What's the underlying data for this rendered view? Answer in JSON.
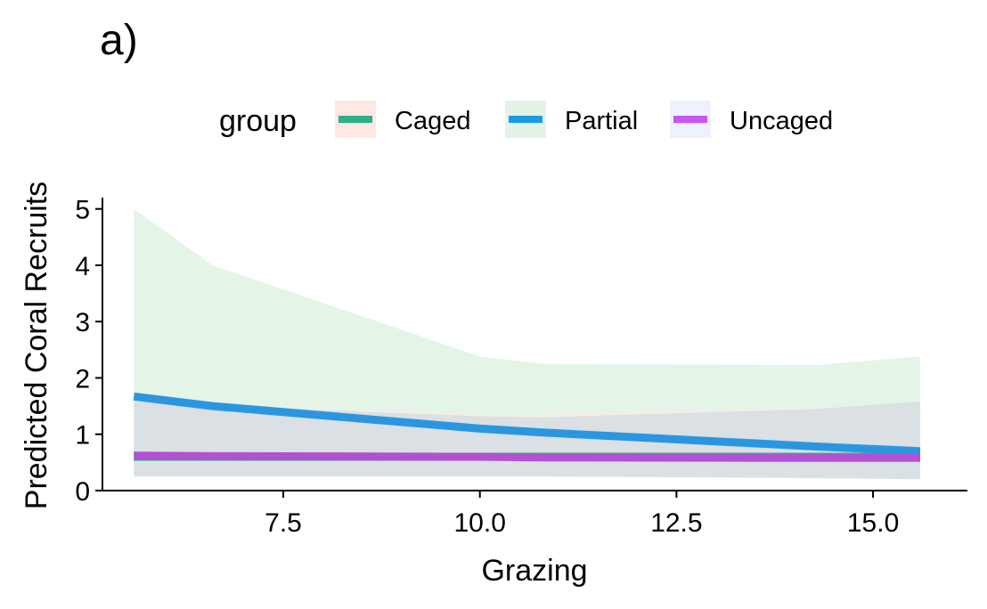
{
  "panel_label": "a)",
  "chart_data": {
    "type": "line",
    "title": "",
    "xlabel": "Grazing",
    "ylabel": "Predicted Coral Recruits",
    "xlim": [
      5.2,
      16.2
    ],
    "ylim": [
      0,
      5.2
    ],
    "xticks": [
      7.5,
      10.0,
      12.5,
      15.0
    ],
    "xtick_labels": [
      "7.5",
      "10.0",
      "12.5",
      "15.0"
    ],
    "yticks": [
      0,
      1,
      2,
      3,
      4,
      5
    ],
    "ytick_labels": [
      "0",
      "1",
      "2",
      "3",
      "4",
      "5"
    ],
    "grid": false,
    "legend": {
      "title": "group",
      "position": "top",
      "entries": [
        "Caged",
        "Partial",
        "Uncaged"
      ]
    },
    "series": [
      {
        "name": "Caged",
        "line_color": "#2db08a",
        "ribbon_color": "#fde8e4",
        "x": [
          5.6,
          6.6,
          10.0,
          10.8,
          14.3,
          15.6
        ],
        "y": [
          0.6,
          0.6,
          0.6,
          0.6,
          0.6,
          0.6
        ],
        "lower": [
          0.27,
          0.27,
          0.27,
          0.27,
          0.27,
          0.27
        ],
        "upper": [
          1.55,
          1.5,
          1.35,
          1.35,
          1.45,
          1.5
        ]
      },
      {
        "name": "Partial",
        "line_color": "#2b96e0",
        "ribbon_color": "#e3f4e6",
        "x": [
          5.6,
          6.6,
          10.0,
          10.8,
          14.3,
          15.6
        ],
        "y": [
          1.67,
          1.5,
          1.1,
          1.03,
          0.78,
          0.7
        ],
        "lower": [
          0.3,
          0.3,
          0.3,
          0.3,
          0.25,
          0.2
        ],
        "upper": [
          5.0,
          4.0,
          2.38,
          2.25,
          2.23,
          2.38
        ]
      },
      {
        "name": "Uncaged",
        "line_color": "#b052d2",
        "ribbon_color": "#eef1fe",
        "x": [
          5.6,
          6.6,
          10.0,
          10.8,
          14.3,
          15.6
        ],
        "y": [
          0.62,
          0.61,
          0.6,
          0.59,
          0.58,
          0.58
        ],
        "lower": [
          0.25,
          0.25,
          0.25,
          0.25,
          0.22,
          0.2
        ],
        "upper": [
          1.6,
          1.5,
          1.32,
          1.3,
          1.45,
          1.58
        ]
      }
    ],
    "legend_swatch_colors": {
      "Caged": {
        "line": "#2db08a",
        "fill": "#fde8e4"
      },
      "Partial": {
        "line": "#1b9be6",
        "fill": "#e3f4e6"
      },
      "Uncaged": {
        "line": "#c956f0",
        "fill": "#eef1fe"
      }
    }
  }
}
